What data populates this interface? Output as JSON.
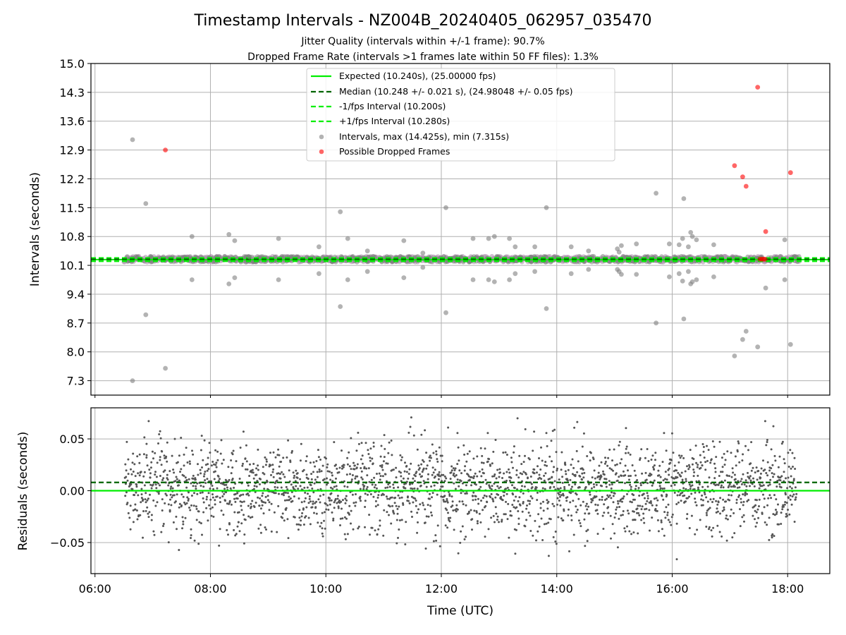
{
  "chart_data": {
    "type": "scatter",
    "title": "Timestamp Intervals - NZ004B_20240405_062957_035470",
    "subtitle_lines": [
      "Jitter Quality (intervals within +/-1 frame): 90.7%",
      "Dropped Frame Rate (intervals >1 frames late within 50 FF files): 1.3%"
    ],
    "xlabel": "Time (UTC)",
    "x_ticks": [
      "06:00",
      "08:00",
      "10:00",
      "12:00",
      "14:00",
      "16:00",
      "18:00"
    ],
    "x_tick_hours": [
      6,
      8,
      10,
      12,
      14,
      16,
      18
    ],
    "xlim_hours": [
      5.93,
      18.73
    ],
    "grid": true,
    "legend_position": "upper center",
    "colors": {
      "expected": "#00ee00",
      "median": "#006400",
      "interval_bound": "#00ee00",
      "intervals": "#808080",
      "dropped": "#ff0000",
      "residuals": "#555555"
    },
    "top_panel": {
      "ylabel": "Intervals (seconds)",
      "ylim": [
        6.95,
        15.0
      ],
      "y_ticks": [
        "7.3",
        "8.0",
        "8.7",
        "9.4",
        "10.1",
        "10.8",
        "11.5",
        "12.2",
        "12.9",
        "13.6",
        "14.3",
        "15.0"
      ],
      "y_tick_values": [
        7.3,
        8.0,
        8.7,
        9.4,
        10.1,
        10.8,
        11.5,
        12.2,
        12.9,
        13.6,
        14.3,
        15.0
      ],
      "expected_interval": 10.24,
      "median_interval": 10.248,
      "lower_bound": 10.2,
      "upper_bound": 10.28,
      "legend": [
        "Expected (10.240s), (25.00000 fps)",
        "Median (10.248 +/- 0.021 s), (24.98048 +/- 0.05 fps)",
        "-1/fps Interval (10.200s)",
        "+1/fps Interval (10.280s)",
        "Intervals, max (14.425s), min (7.315s)",
        "Possible Dropped Frames"
      ],
      "baseline_band": {
        "start_hour": 6.5,
        "end_hour": 18.2,
        "min": 10.18,
        "max": 10.32
      },
      "outlier_intervals": [
        {
          "t": 6.65,
          "v": 13.15
        },
        {
          "t": 6.65,
          "v": 7.3
        },
        {
          "t": 6.88,
          "v": 11.6
        },
        {
          "t": 6.88,
          "v": 8.9
        },
        {
          "t": 7.22,
          "v": 7.6
        },
        {
          "t": 7.68,
          "v": 10.8
        },
        {
          "t": 7.68,
          "v": 9.75
        },
        {
          "t": 8.32,
          "v": 10.85
        },
        {
          "t": 8.32,
          "v": 9.65
        },
        {
          "t": 8.42,
          "v": 10.7
        },
        {
          "t": 8.42,
          "v": 9.8
        },
        {
          "t": 8.68,
          "v": 10.3
        },
        {
          "t": 9.18,
          "v": 10.75
        },
        {
          "t": 9.18,
          "v": 9.75
        },
        {
          "t": 9.88,
          "v": 10.55
        },
        {
          "t": 9.88,
          "v": 9.9
        },
        {
          "t": 10.25,
          "v": 11.4
        },
        {
          "t": 10.25,
          "v": 9.1
        },
        {
          "t": 10.38,
          "v": 10.75
        },
        {
          "t": 10.38,
          "v": 9.75
        },
        {
          "t": 10.72,
          "v": 10.45
        },
        {
          "t": 10.72,
          "v": 9.95
        },
        {
          "t": 11.35,
          "v": 10.7
        },
        {
          "t": 11.35,
          "v": 9.8
        },
        {
          "t": 11.68,
          "v": 10.4
        },
        {
          "t": 11.68,
          "v": 10.05
        },
        {
          "t": 12.08,
          "v": 11.5
        },
        {
          "t": 12.08,
          "v": 8.95
        },
        {
          "t": 12.55,
          "v": 10.75
        },
        {
          "t": 12.55,
          "v": 9.75
        },
        {
          "t": 12.82,
          "v": 10.75
        },
        {
          "t": 12.82,
          "v": 9.75
        },
        {
          "t": 12.92,
          "v": 10.8
        },
        {
          "t": 12.92,
          "v": 9.7
        },
        {
          "t": 13.18,
          "v": 10.75
        },
        {
          "t": 13.18,
          "v": 9.75
        },
        {
          "t": 13.28,
          "v": 10.55
        },
        {
          "t": 13.28,
          "v": 9.9
        },
        {
          "t": 13.62,
          "v": 10.55
        },
        {
          "t": 13.62,
          "v": 9.95
        },
        {
          "t": 13.82,
          "v": 11.5
        },
        {
          "t": 13.82,
          "v": 9.05
        },
        {
          "t": 14.25,
          "v": 10.55
        },
        {
          "t": 14.25,
          "v": 9.9
        },
        {
          "t": 14.55,
          "v": 10.45
        },
        {
          "t": 14.55,
          "v": 10.0
        },
        {
          "t": 15.05,
          "v": 10.5
        },
        {
          "t": 15.05,
          "v": 10.0
        },
        {
          "t": 15.08,
          "v": 10.42
        },
        {
          "t": 15.08,
          "v": 9.95
        },
        {
          "t": 15.12,
          "v": 10.58
        },
        {
          "t": 15.12,
          "v": 9.88
        },
        {
          "t": 15.38,
          "v": 10.62
        },
        {
          "t": 15.38,
          "v": 9.88
        },
        {
          "t": 15.72,
          "v": 11.85
        },
        {
          "t": 15.72,
          "v": 8.7
        },
        {
          "t": 15.95,
          "v": 10.62
        },
        {
          "t": 15.95,
          "v": 9.82
        },
        {
          "t": 16.12,
          "v": 10.6
        },
        {
          "t": 16.12,
          "v": 9.9
        },
        {
          "t": 16.18,
          "v": 10.75
        },
        {
          "t": 16.18,
          "v": 9.72
        },
        {
          "t": 16.2,
          "v": 11.72
        },
        {
          "t": 16.2,
          "v": 8.8
        },
        {
          "t": 16.28,
          "v": 10.55
        },
        {
          "t": 16.28,
          "v": 9.95
        },
        {
          "t": 16.32,
          "v": 10.9
        },
        {
          "t": 16.32,
          "v": 9.65
        },
        {
          "t": 16.35,
          "v": 10.8
        },
        {
          "t": 16.35,
          "v": 9.7
        },
        {
          "t": 16.42,
          "v": 10.72
        },
        {
          "t": 16.42,
          "v": 9.75
        },
        {
          "t": 16.72,
          "v": 10.6
        },
        {
          "t": 16.72,
          "v": 9.82
        },
        {
          "t": 17.08,
          "v": 7.9
        },
        {
          "t": 17.22,
          "v": 8.3
        },
        {
          "t": 17.28,
          "v": 8.5
        },
        {
          "t": 17.48,
          "v": 8.12
        },
        {
          "t": 17.62,
          "v": 9.55
        },
        {
          "t": 17.95,
          "v": 10.72
        },
        {
          "t": 17.95,
          "v": 9.75
        },
        {
          "t": 18.05,
          "v": 8.18
        }
      ],
      "dropped_frames": [
        {
          "t": 7.22,
          "v": 12.9
        },
        {
          "t": 17.08,
          "v": 12.52
        },
        {
          "t": 17.22,
          "v": 12.25
        },
        {
          "t": 17.28,
          "v": 12.02
        },
        {
          "t": 17.48,
          "v": 14.425
        },
        {
          "t": 17.62,
          "v": 10.92
        },
        {
          "t": 18.05,
          "v": 12.35
        },
        {
          "t": 17.52,
          "v": 10.25
        },
        {
          "t": 17.55,
          "v": 10.25
        },
        {
          "t": 17.58,
          "v": 10.25
        },
        {
          "t": 17.61,
          "v": 10.25
        }
      ]
    },
    "bottom_panel": {
      "ylabel": "Residuals (seconds)",
      "ylim": [
        -0.08,
        0.08
      ],
      "y_ticks": [
        "0.05",
        "0.00",
        "−0.05"
      ],
      "y_tick_values": [
        0.05,
        0.0,
        -0.05
      ],
      "expected_residual": 0.0,
      "median_residual": 0.008,
      "residual_cloud": {
        "start_hour": 6.52,
        "end_hour": 18.15,
        "count": 2400,
        "core_std": 0.022,
        "min": -0.075,
        "max": 0.078
      }
    }
  }
}
